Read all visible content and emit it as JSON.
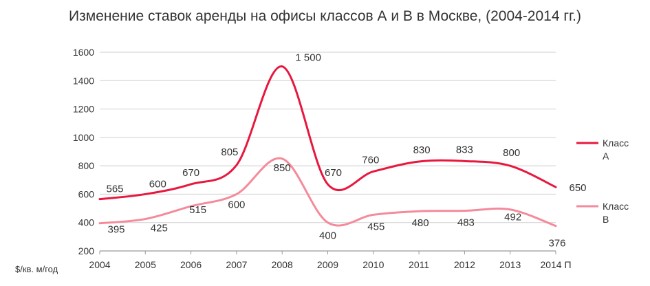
{
  "chart_data": {
    "type": "line",
    "title": "Изменение ставок аренды на офисы классов А и В в Москве, (2004-2014 гг.)",
    "ylabel": "$/кв. м/год",
    "xlabel": "",
    "categories": [
      "2004",
      "2005",
      "2006",
      "2007",
      "2008",
      "2009",
      "2010",
      "2011",
      "2012",
      "2013",
      "2014 П"
    ],
    "ylim": [
      200,
      1600
    ],
    "yticks": [
      200,
      400,
      600,
      800,
      1000,
      1200,
      1400,
      1600
    ],
    "grid": true,
    "legend_position": "right",
    "series": [
      {
        "name": "Класс А",
        "color": "#e8173e",
        "points": [
          [
            2004,
            565
          ],
          [
            2005,
            600
          ],
          [
            2006,
            670
          ],
          [
            2007,
            805
          ],
          [
            2008,
            1500
          ],
          [
            2009,
            670
          ],
          [
            2010,
            760
          ],
          [
            2011,
            830
          ],
          [
            2012,
            833
          ],
          [
            2013,
            800
          ],
          [
            2014,
            650
          ]
        ],
        "labels": [
          "565",
          "600",
          "670",
          "805",
          "1 500",
          "670",
          "760",
          "830",
          "833",
          "800",
          "650"
        ]
      },
      {
        "name": "Класс В",
        "color": "#f58a9a",
        "points": [
          [
            2004,
            395
          ],
          [
            2005,
            425
          ],
          [
            2006,
            515
          ],
          [
            2007,
            600
          ],
          [
            2008,
            850
          ],
          [
            2009,
            400
          ],
          [
            2010,
            455
          ],
          [
            2011,
            480
          ],
          [
            2012,
            483
          ],
          [
            2013,
            492
          ],
          [
            2014,
            376
          ]
        ],
        "labels": [
          "395",
          "425",
          "515",
          "600",
          "850",
          "400",
          "455",
          "480",
          "483",
          "492",
          "376"
        ]
      }
    ]
  }
}
